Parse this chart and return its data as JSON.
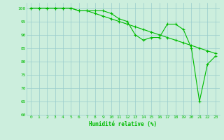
{
  "x": [
    0,
    1,
    2,
    3,
    4,
    5,
    6,
    7,
    8,
    9,
    10,
    11,
    12,
    13,
    14,
    15,
    16,
    17,
    18,
    19,
    20,
    21,
    22,
    23
  ],
  "line1": [
    100,
    100,
    100,
    100,
    100,
    100,
    99,
    99,
    99,
    99,
    98,
    96,
    95,
    90,
    88,
    89,
    89,
    94,
    94,
    92,
    85,
    65,
    79,
    82
  ],
  "line2": [
    100,
    100,
    100,
    100,
    100,
    100,
    99,
    99,
    98,
    97,
    96,
    95,
    94,
    93,
    92,
    91,
    90,
    89,
    88,
    87,
    86,
    85,
    84,
    83
  ],
  "line_color": "#00bb00",
  "bg_color": "#cceedd",
  "grid_color": "#99cccc",
  "xlabel": "Humidité relative (%)",
  "xlim": [
    -0.5,
    23.5
  ],
  "ylim": [
    60,
    102
  ],
  "yticks": [
    60,
    65,
    70,
    75,
    80,
    85,
    90,
    95,
    100
  ],
  "xticks": [
    0,
    1,
    2,
    3,
    4,
    5,
    6,
    7,
    8,
    9,
    10,
    11,
    12,
    13,
    14,
    15,
    16,
    17,
    18,
    19,
    20,
    21,
    22,
    23
  ]
}
